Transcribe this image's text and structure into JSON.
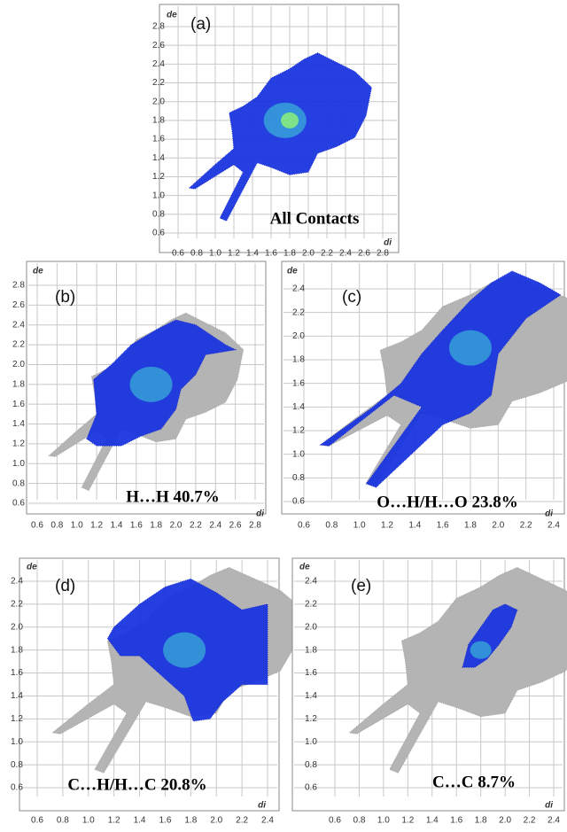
{
  "panels": [
    {
      "label": "(a)",
      "caption": "All Contacts",
      "y_label": "de",
      "x_label": "di",
      "yticks": [
        "2.8",
        "2.6",
        "2.4",
        "2.2",
        "2.0",
        "1.8",
        "1.6",
        "1.4",
        "1.2",
        "1.0",
        "0.8",
        "0.6"
      ],
      "xticks": [
        "0.6",
        "0.8",
        "1.0",
        "1.2",
        "1.4",
        "1.6",
        "1.8",
        "2.0",
        "2.2",
        "2.4",
        "2.6",
        "2.8"
      ]
    },
    {
      "label": "(b)",
      "caption": "H…H 40.7%",
      "y_label": "de",
      "x_label": "di",
      "yticks": [
        "2.8",
        "2.6",
        "2.4",
        "2.2",
        "2.0",
        "1.8",
        "1.6",
        "1.4",
        "1.2",
        "1.0",
        "0.8",
        "0.6"
      ],
      "xticks": [
        "0.6",
        "0.8",
        "1.0",
        "1.2",
        "1.4",
        "1.6",
        "1.8",
        "2.0",
        "2.2",
        "2.4",
        "2.6",
        "2.8"
      ]
    },
    {
      "label": "(c)",
      "caption": "O…H/H…O 23.8%",
      "y_label": "de",
      "x_label": "di",
      "yticks": [
        "2.4",
        "2.2",
        "2.0",
        "1.8",
        "1.6",
        "1.4",
        "1.2",
        "1.0",
        "0.8",
        "0.6"
      ],
      "xticks": [
        "0.6",
        "0.8",
        "1.0",
        "1.2",
        "1.4",
        "1.6",
        "1.8",
        "2.0",
        "2.2",
        "2.4"
      ]
    },
    {
      "label": "(d)",
      "caption": "C…H/H…C 20.8%",
      "y_label": "de",
      "x_label": "di",
      "yticks": [
        "2.4",
        "2.2",
        "2.0",
        "1.8",
        "1.6",
        "1.4",
        "1.2",
        "1.0",
        "0.8",
        "0.6"
      ],
      "xticks": [
        "0.6",
        "0.8",
        "1.0",
        "1.2",
        "1.4",
        "1.6",
        "1.8",
        "2.0",
        "2.2",
        "2.4"
      ]
    },
    {
      "label": "(e)",
      "caption": "C…C 8.7%",
      "y_label": "de",
      "x_label": "di",
      "yticks": [
        "2.4",
        "2.2",
        "2.0",
        "1.8",
        "1.6",
        "1.4",
        "1.2",
        "1.0",
        "0.8",
        "0.6"
      ],
      "xticks": [
        "0.6",
        "0.8",
        "1.0",
        "1.2",
        "1.4",
        "1.6",
        "1.8",
        "2.0",
        "2.2",
        "2.4"
      ]
    }
  ]
}
